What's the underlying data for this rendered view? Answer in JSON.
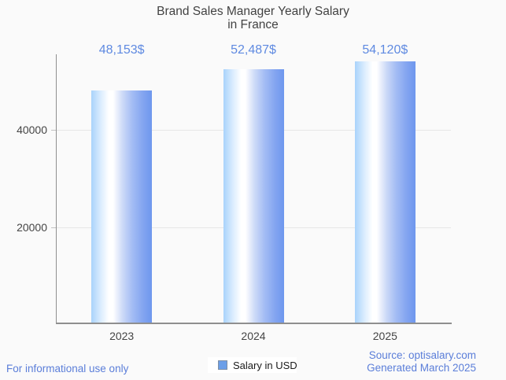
{
  "title": {
    "line1": "Brand Sales Manager Yearly Salary",
    "line2": "in France"
  },
  "chart_data": {
    "type": "bar",
    "title": "Brand Sales Manager Yearly Salary in France",
    "categories": [
      "2023",
      "2024",
      "2025"
    ],
    "series": [
      {
        "name": "Salary in USD",
        "values": [
          48153,
          52487,
          54120
        ]
      }
    ],
    "value_labels": [
      "48,153$",
      "52,487$",
      "54,120$"
    ],
    "xlabel": "",
    "ylabel": "",
    "y_ticks": [
      20000,
      40000
    ],
    "y_tick_labels": [
      "20000",
      "40000"
    ],
    "ylim": [
      0,
      55650
    ],
    "grid": true,
    "legend_position": "bottom",
    "bar_gradient": {
      "left": "#a9d3fb",
      "highlight": "#ffffff",
      "right": "#6e97ee"
    }
  },
  "legend": {
    "label": "Salary in USD"
  },
  "footer": {
    "left": "For informational use only",
    "source_line": "Source: optisalary.com",
    "generated_line": "Generated March 2025"
  },
  "colors": {
    "background": "#fafafa",
    "title_text": "#424242",
    "axis_text": "#454545",
    "value_label_text": "#5f8ae1",
    "footer_text": "#5b7ed9",
    "gridline": "#e6e6e6",
    "axis_line": "#8f8f8f",
    "legend_swatch_fill": "#6c9fe8",
    "legend_swatch_border": "#7e8fa5",
    "legend_background": "#ffffff",
    "bar_gradient_left": "#a9d3fb",
    "bar_gradient_highlight": "#ffffff",
    "bar_gradient_right": "#6e97ee"
  }
}
